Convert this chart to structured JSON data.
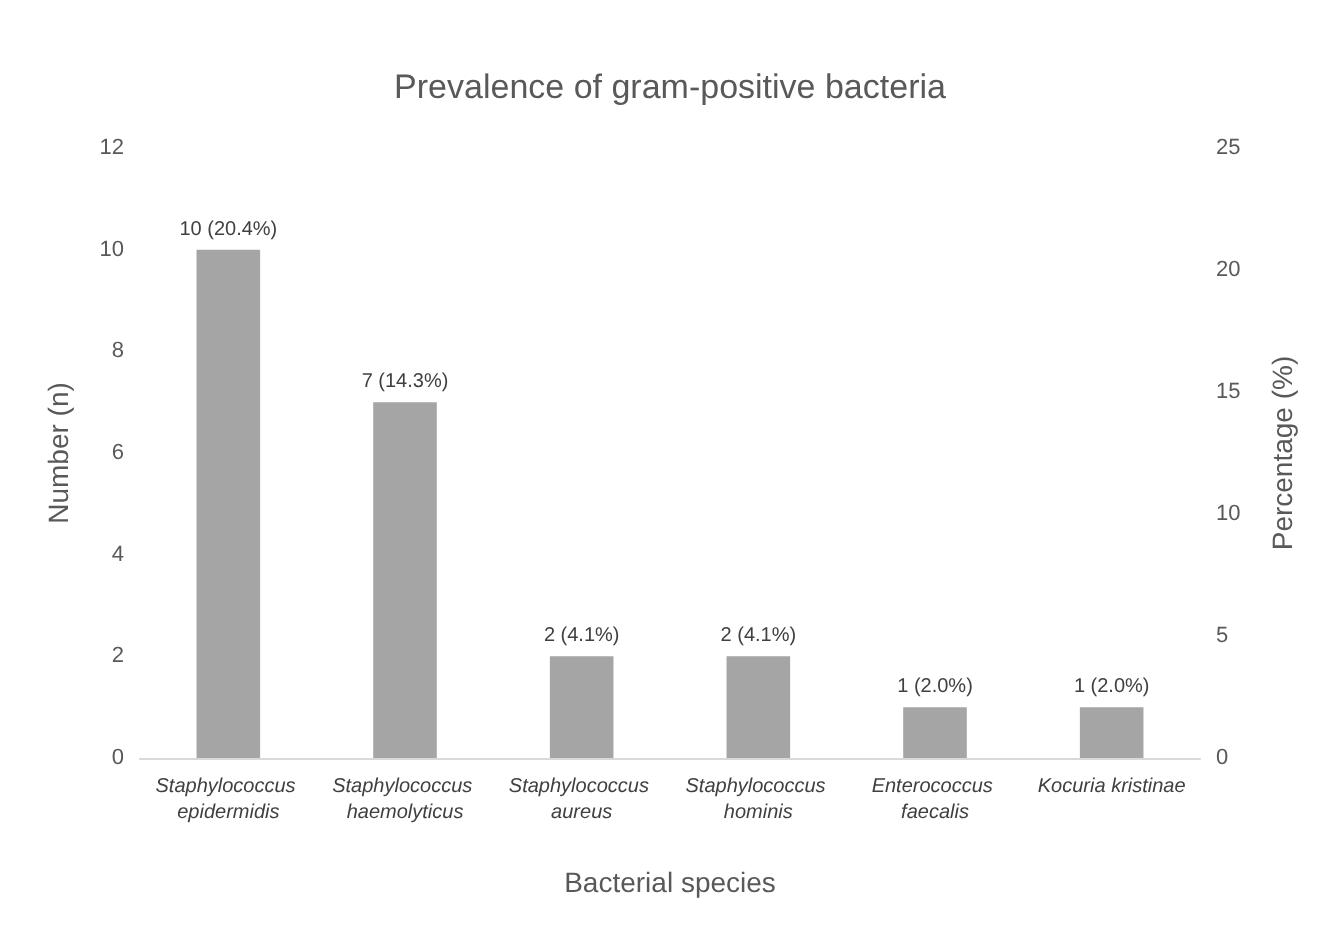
{
  "chart_data": {
    "type": "bar",
    "title": "Prevalence of gram-positive bacteria",
    "xlabel": "Bacterial species",
    "ylabel": "Number (n)",
    "y2label": "Percentage (%)",
    "categories": [
      "Staphylococcus epidermidis",
      "Staphylococcus haemolyticus",
      "Staphylococcus aureus",
      "Staphylococcus hominis",
      "Enterococcus faecalis",
      "Kocuria kristinae"
    ],
    "values": [
      10,
      7,
      2,
      2,
      1,
      1
    ],
    "value_labels": [
      "10 (20.4%)",
      "7 (14.3%)",
      "2 (4.1%)",
      "2 (4.1%)",
      "1 (2.0%)",
      "1 (2.0%)"
    ],
    "color": "#a5a5a5",
    "ylim": [
      0,
      12
    ],
    "yticks": [
      0,
      2,
      4,
      6,
      8,
      10,
      12
    ],
    "y2lim": [
      0,
      25
    ],
    "y2ticks": [
      0,
      5,
      10,
      15,
      20,
      25
    ],
    "grid": false
  }
}
